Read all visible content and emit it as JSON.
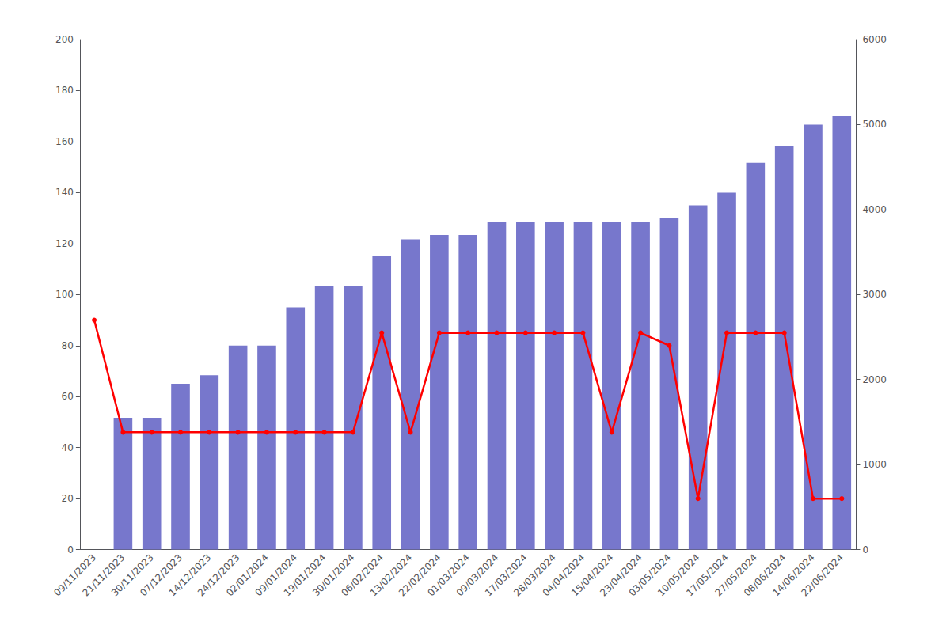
{
  "chart_data": {
    "type": "bar",
    "categories": [
      "09/11/2023",
      "21/11/2023",
      "30/11/2023",
      "07/12/2023",
      "14/12/2023",
      "24/12/2023",
      "02/01/2024",
      "09/01/2024",
      "19/01/2024",
      "30/01/2024",
      "06/02/2024",
      "13/02/2024",
      "22/02/2024",
      "01/03/2024",
      "09/03/2024",
      "17/03/2024",
      "28/03/2024",
      "04/04/2024",
      "15/04/2024",
      "23/04/2024",
      "03/05/2024",
      "10/05/2024",
      "17/05/2024",
      "27/05/2024",
      "08/06/2024",
      "14/06/2024",
      "22/06/2024"
    ],
    "series": [
      {
        "type": "bar",
        "axis": "y2",
        "color": "#7777cc",
        "values": [
          null,
          1550,
          1550,
          1950,
          2050,
          2400,
          2400,
          2850,
          3100,
          3100,
          3450,
          3650,
          3700,
          3700,
          3850,
          3850,
          3850,
          3850,
          3850,
          3850,
          3900,
          4050,
          4200,
          4550,
          4750,
          5000,
          5100
        ]
      },
      {
        "type": "line",
        "color": "#ff0000",
        "marker": "circle",
        "values": [
          90,
          46,
          46,
          46,
          46,
          46,
          46,
          46,
          46,
          46,
          85,
          46,
          85,
          85,
          85,
          85,
          85,
          85,
          46,
          85,
          80,
          20,
          85,
          85,
          85,
          20,
          20
        ]
      }
    ],
    "ylim": [
      0,
      200
    ],
    "yticks": [
      0,
      20,
      40,
      60,
      80,
      100,
      120,
      140,
      160,
      180,
      200
    ],
    "y2lim": [
      0,
      6000
    ],
    "y2ticks": [
      0,
      1000,
      2000,
      3000,
      4000,
      5000,
      6000
    ],
    "grid": false
  }
}
